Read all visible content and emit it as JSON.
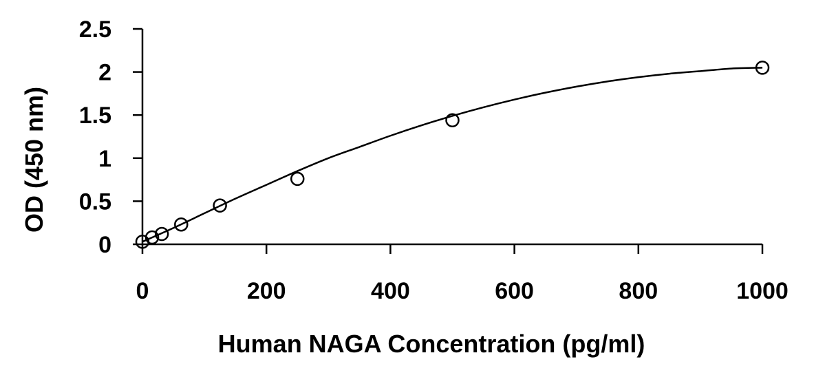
{
  "chart_data": {
    "type": "scatter",
    "title": "",
    "xlabel": "Human NAGA Concentration (pg/ml)",
    "ylabel": "OD (450 nm)",
    "xlim": [
      0,
      1000
    ],
    "ylim": [
      0,
      2.5
    ],
    "x_ticks": [
      "0",
      "200",
      "400",
      "600",
      "800",
      "1000"
    ],
    "y_ticks": [
      "0",
      "0.5",
      "1",
      "1.5",
      "2",
      "2.5"
    ],
    "grid": false,
    "legend": "none",
    "series": [
      {
        "x": [
          0,
          15.6,
          31.25,
          62.5,
          125,
          250,
          500,
          1000
        ],
        "y": [
          0.03,
          0.08,
          0.12,
          0.23,
          0.45,
          0.76,
          1.44,
          2.05
        ]
      }
    ],
    "fit_curve": {
      "x": [
        0,
        50,
        100,
        150,
        200,
        250,
        300,
        350,
        400,
        450,
        500,
        550,
        600,
        650,
        700,
        750,
        800,
        850,
        900,
        950,
        1000
      ],
      "y": [
        0.03,
        0.19,
        0.36,
        0.53,
        0.69,
        0.85,
        1.0,
        1.13,
        1.26,
        1.38,
        1.49,
        1.59,
        1.68,
        1.76,
        1.83,
        1.89,
        1.94,
        1.98,
        2.01,
        2.04,
        2.05
      ]
    },
    "colors": {
      "line": "#000000",
      "marker_fill": "#ffffff",
      "marker_stroke": "#000000"
    }
  }
}
